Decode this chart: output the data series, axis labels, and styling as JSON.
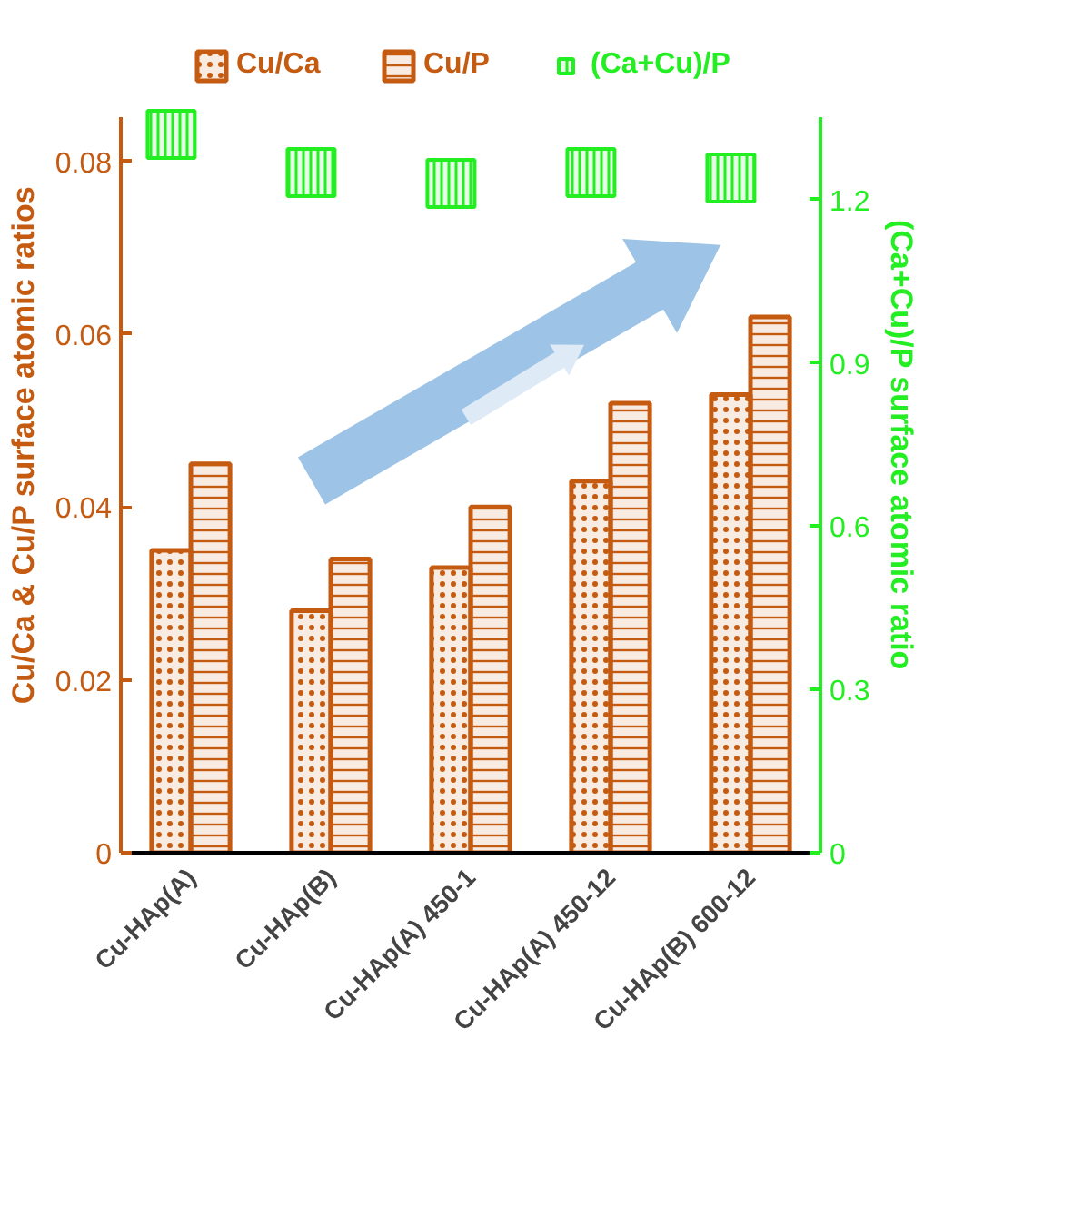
{
  "chart_data": {
    "type": "bar",
    "ylabel": "Cu/Ca & Cu/P surface atomic ratios",
    "y2label": "(Ca+Cu)/P surface atomic ratio",
    "categories": [
      "Cu-HAp(A)",
      "Cu-HAp(B)",
      "Cu-HAp(A) 450-1",
      "Cu-HAp(A) 450-12",
      "Cu-HAp(B) 600-12"
    ],
    "series": [
      {
        "name": "Cu/Ca",
        "color": "#c55a11",
        "values": [
          0.035,
          0.028,
          0.033,
          0.043,
          0.053
        ]
      },
      {
        "name": "Cu/P",
        "color": "#c55a11",
        "values": [
          0.045,
          0.034,
          0.04,
          0.052,
          0.062
        ]
      },
      {
        "name": "(Ca+Cu)/P",
        "type": "scatter",
        "axis": "y2",
        "color": "#22ee22",
        "marker": "square",
        "values": [
          1.32,
          1.25,
          1.23,
          1.25,
          1.24
        ]
      }
    ],
    "ylim": [
      0,
      0.085
    ],
    "yticks": [
      0,
      0.02,
      0.04,
      0.06,
      0.08
    ],
    "y2lim": [
      0,
      1.35
    ],
    "y2ticks": [
      0,
      0.3,
      0.6,
      0.9,
      1.2
    ],
    "grid": false,
    "legend": "top"
  }
}
